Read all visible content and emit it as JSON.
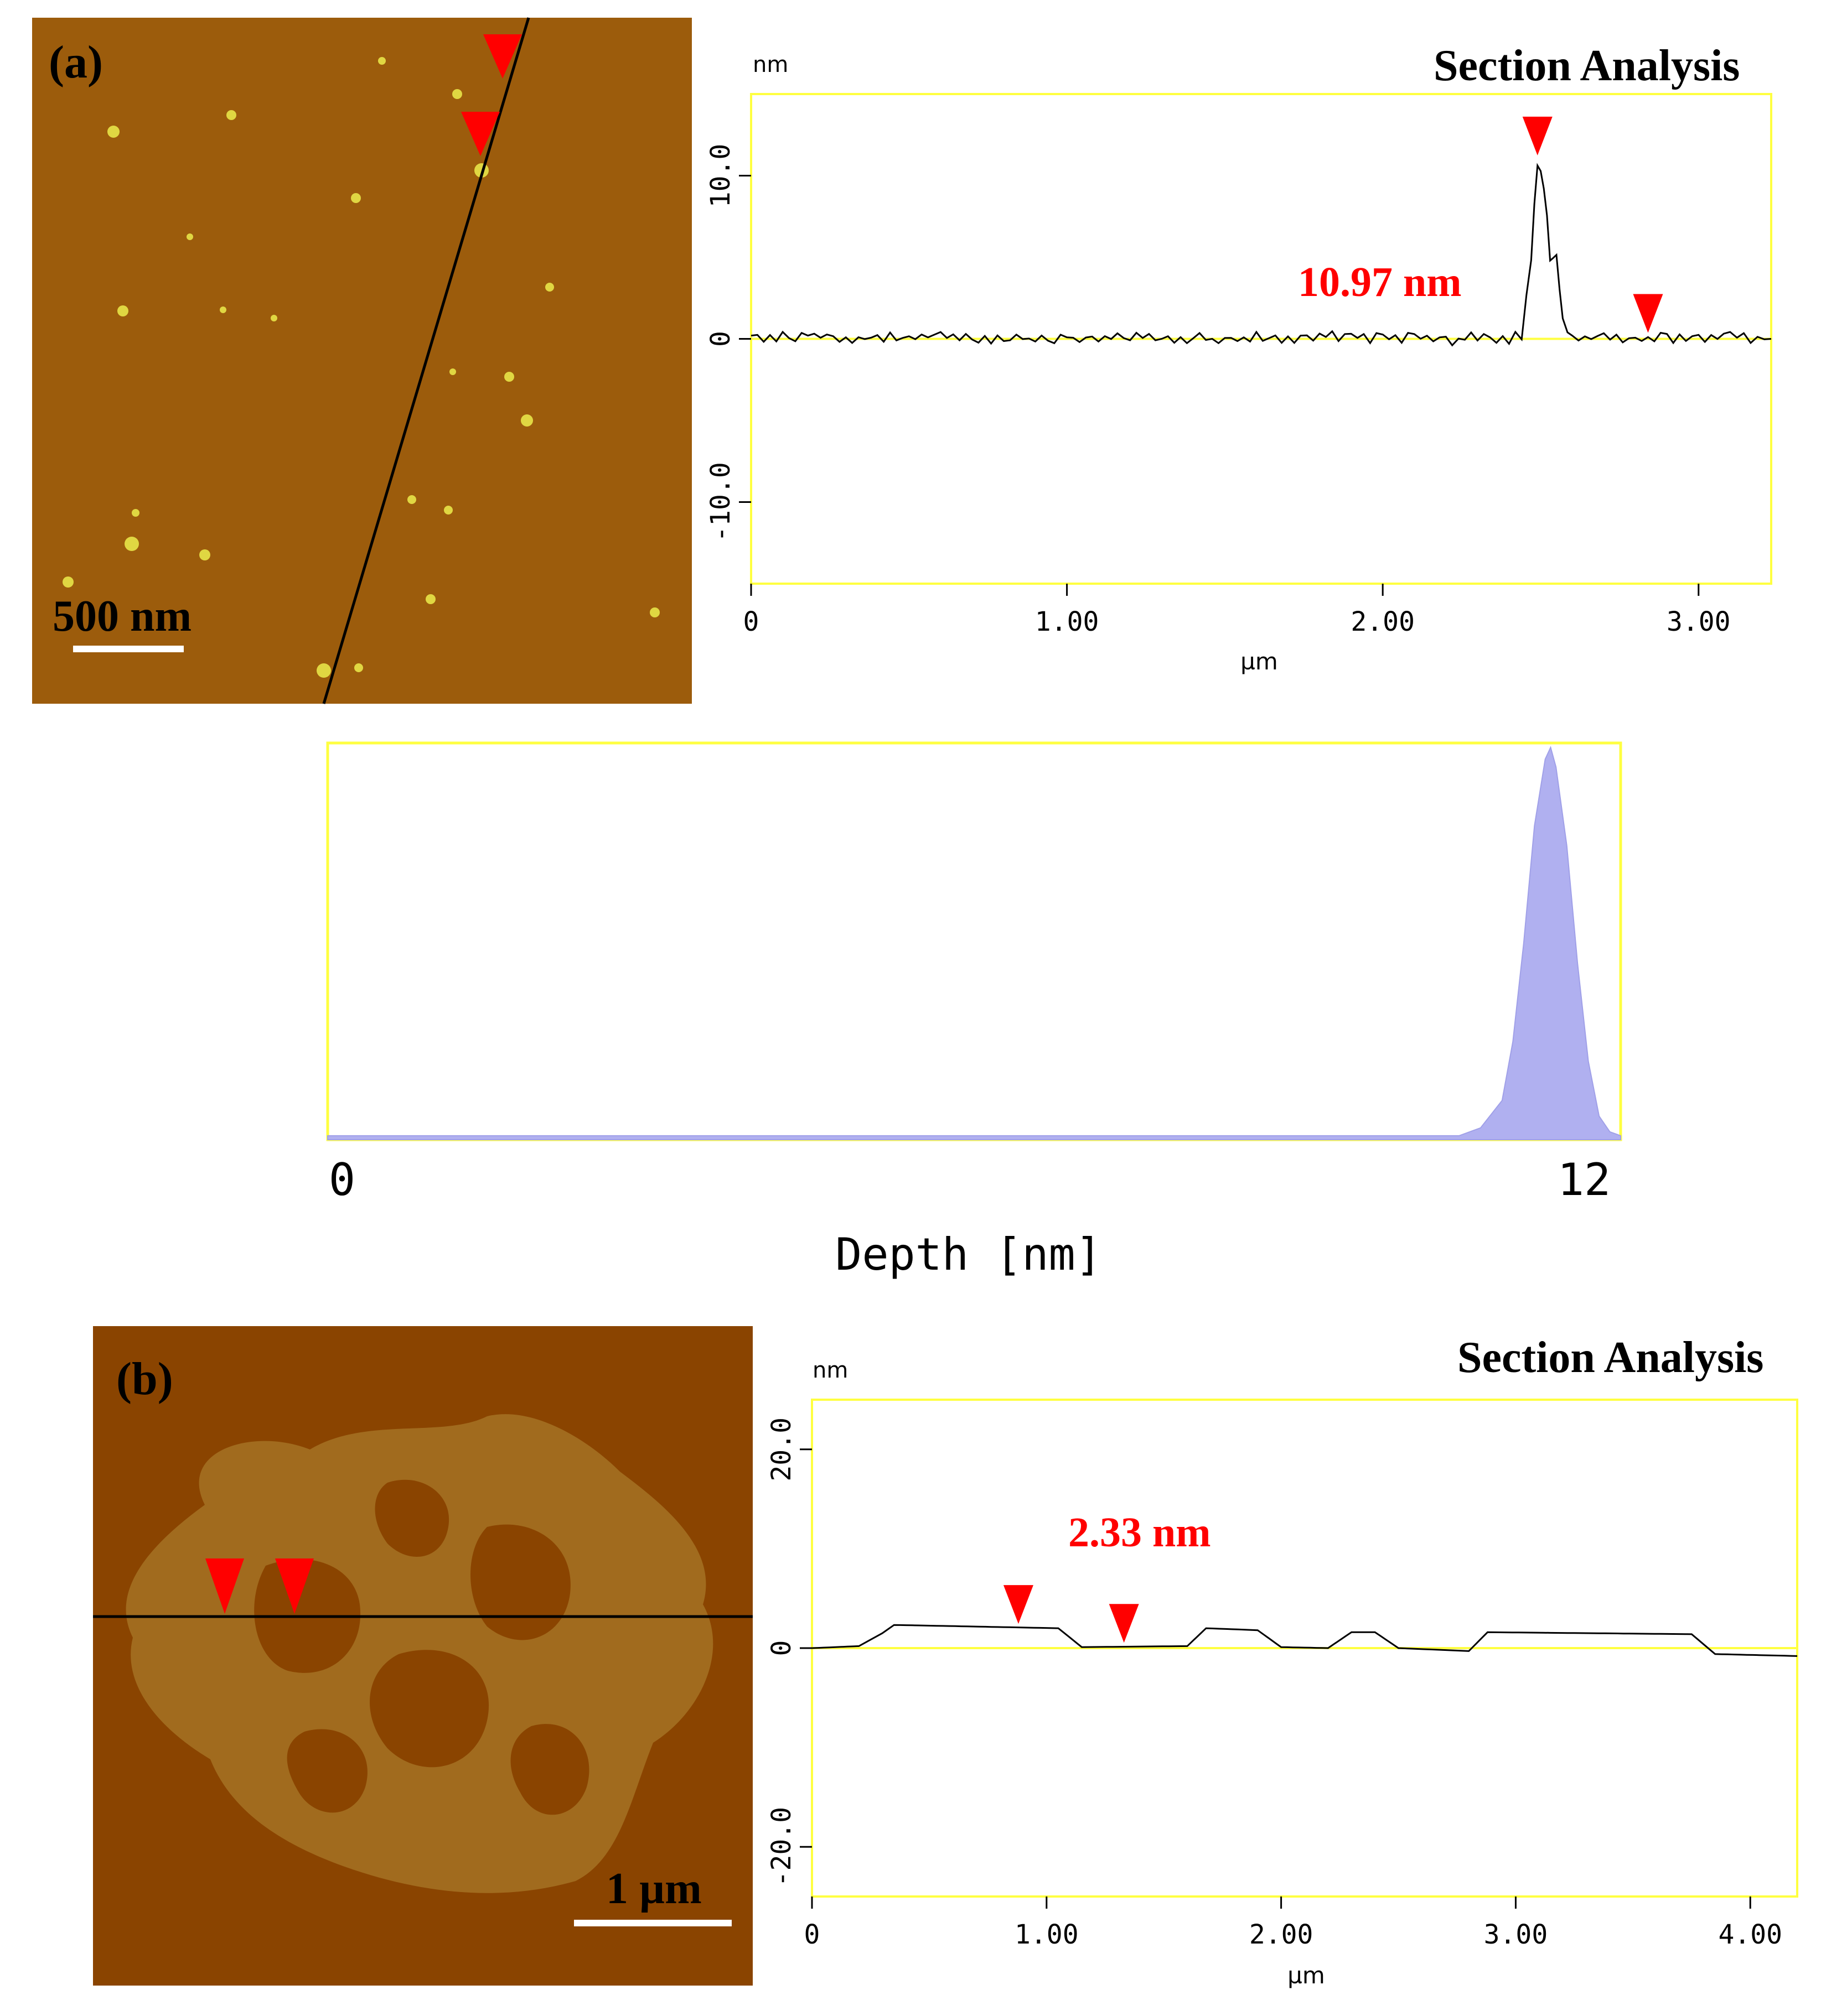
{
  "panel_a": {
    "label": "(a)",
    "scale_bar": "500 nm",
    "section_title": "Section Analysis",
    "annotation": "10.97 nm"
  },
  "panel_b": {
    "label": "(b)",
    "scale_bar": "1 µm",
    "section_title": "Section Analysis",
    "annotation": "2.33 nm"
  },
  "colors": {
    "afm_background_a": "#9c5c0c",
    "afm_background_b": "#8a4400",
    "afm_island_b": "#a16b1e",
    "particle": "#e8e448",
    "frame": "#ffff40",
    "marker": "#ff0000",
    "annotation": "#ff0000",
    "histogram_fill": "#b0b0f0",
    "profile_line": "#000000"
  },
  "chart_data": [
    {
      "type": "line",
      "panel": "a",
      "title": "Section Analysis",
      "xlabel": "µm",
      "ylabel": "nm",
      "xlim": [
        0,
        3.23
      ],
      "ylim": [
        -15,
        15
      ],
      "xticks": [
        0,
        1.0,
        2.0,
        3.0
      ],
      "xtick_labels": [
        "0",
        "1.00",
        "2.00",
        "3.00"
      ],
      "yticks": [
        10.0,
        0,
        -10.0
      ],
      "ytick_labels": [
        "10.0",
        "0",
        "-10.0"
      ],
      "series": [
        {
          "x": [
            0,
            0.1,
            0.2,
            0.3,
            0.4,
            0.5,
            0.6,
            0.7,
            0.8,
            0.9,
            1.0,
            1.1,
            1.2,
            1.3,
            1.4,
            1.5,
            1.6,
            1.7,
            1.8,
            1.9,
            2.0,
            2.1,
            2.2,
            2.3,
            2.4,
            2.44,
            2.47,
            2.49,
            2.51,
            2.53,
            2.55,
            2.57,
            2.6,
            2.7,
            2.8,
            2.9,
            3.0,
            3.1,
            3.23
          ],
          "y": [
            0.2,
            0.1,
            0.3,
            -0.1,
            0.1,
            0.0,
            0.2,
            -0.1,
            0.1,
            0.0,
            0.1,
            -0.1,
            0.2,
            0.0,
            0.1,
            -0.1,
            0.1,
            0.0,
            0.1,
            0.2,
            0.0,
            0.1,
            -0.1,
            0.1,
            0.0,
            0.2,
            5.0,
            10.97,
            9.5,
            5.0,
            4.8,
            1.0,
            0.1,
            0.2,
            0.0,
            0.1,
            -0.1,
            0.1,
            0.0
          ]
        }
      ],
      "markers": [
        {
          "x": 2.49,
          "y": 10.97
        },
        {
          "x": 2.84,
          "y": 0.1
        }
      ]
    },
    {
      "type": "area",
      "panel": "a-histogram",
      "xlabel": "Depth [nm]",
      "xlim": [
        0,
        12
      ],
      "xtick_labels": [
        "0",
        "12"
      ],
      "series": [
        {
          "x": [
            0,
            10,
            10.5,
            10.7,
            10.9,
            11.0,
            11.1,
            11.2,
            11.3,
            11.35,
            11.4,
            11.5,
            11.6,
            11.7,
            11.8,
            11.9,
            12
          ],
          "y": [
            0.01,
            0.01,
            0.01,
            0.03,
            0.1,
            0.25,
            0.5,
            0.8,
            0.97,
            1.0,
            0.95,
            0.75,
            0.45,
            0.2,
            0.06,
            0.02,
            0.01
          ]
        }
      ]
    },
    {
      "type": "line",
      "panel": "b",
      "title": "Section Analysis",
      "xlabel": "µm",
      "ylabel": "nm",
      "xlim": [
        0,
        4.2
      ],
      "ylim": [
        -25,
        25
      ],
      "xticks": [
        0,
        1.0,
        2.0,
        3.0,
        4.0
      ],
      "xtick_labels": [
        "0",
        "1.00",
        "2.00",
        "3.00",
        "4.00"
      ],
      "yticks": [
        20.0,
        0,
        -20.0
      ],
      "ytick_labels": [
        "20.0",
        "0",
        "-20.0"
      ],
      "series": [
        {
          "x": [
            0,
            0.2,
            0.3,
            0.35,
            1.05,
            1.15,
            1.6,
            1.68,
            1.9,
            2.0,
            2.2,
            2.3,
            2.4,
            2.5,
            2.8,
            2.88,
            3.75,
            3.85,
            4.2
          ],
          "y": [
            0,
            0.2,
            1.5,
            2.33,
            2.0,
            0.1,
            0.2,
            2.0,
            1.8,
            0.1,
            0.0,
            1.6,
            1.6,
            0.0,
            -0.3,
            1.6,
            1.4,
            -0.6,
            -0.8
          ]
        }
      ],
      "markers": [
        {
          "x": 0.88,
          "y": 2.0
        },
        {
          "x": 1.33,
          "y": 0.1
        }
      ]
    }
  ]
}
